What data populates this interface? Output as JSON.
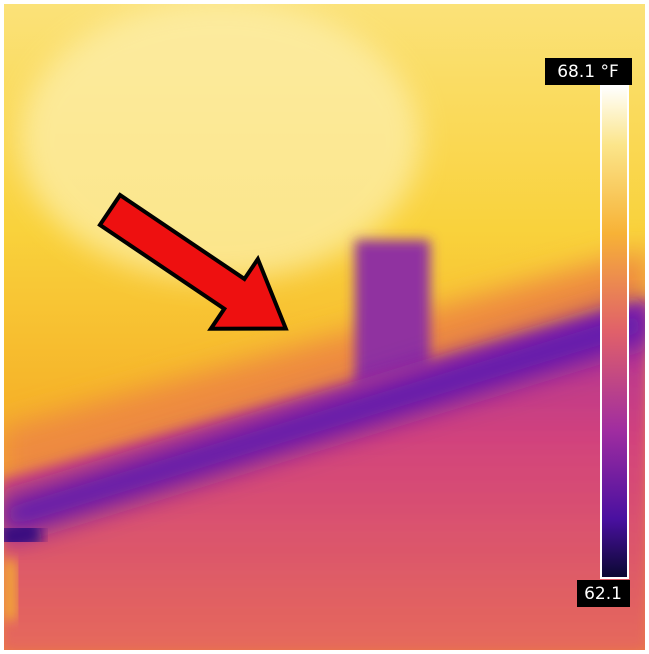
{
  "scale": {
    "max_label": "68.1 °F",
    "min_label": "62.1"
  }
}
